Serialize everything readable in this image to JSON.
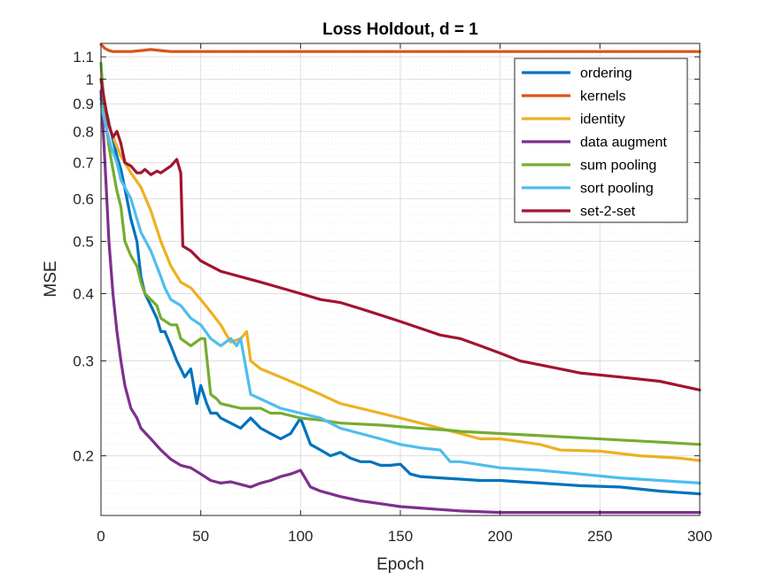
{
  "chart_data": {
    "type": "line",
    "title": "Loss Holdout, d = 1",
    "xlabel": "Epoch",
    "ylabel": "MSE",
    "xlim": [
      0,
      300
    ],
    "ylim": [
      0.155,
      1.165
    ],
    "yscale": "log",
    "grid": true,
    "legend_position": "top-right",
    "x_ticks": [
      0,
      50,
      100,
      150,
      200,
      250,
      300
    ],
    "x_tick_labels": [
      "0",
      "50",
      "100",
      "150",
      "200",
      "250",
      "300"
    ],
    "y_ticks": [
      0.2,
      0.3,
      0.4,
      0.5,
      0.6,
      0.7,
      0.8,
      0.9,
      1,
      1.1
    ],
    "y_tick_labels": [
      "0.2",
      "0.3",
      "0.4",
      "0.5",
      "0.6",
      "0.7",
      "0.8",
      "0.9",
      "1",
      "1.1"
    ],
    "series": [
      {
        "name": "ordering",
        "color": "#0072BD",
        "x": [
          0,
          3,
          5,
          8,
          10,
          13,
          15,
          18,
          20,
          22,
          25,
          28,
          30,
          32,
          35,
          38,
          40,
          42,
          45,
          48,
          50,
          53,
          55,
          58,
          60,
          65,
          70,
          75,
          80,
          85,
          90,
          95,
          100,
          105,
          110,
          115,
          120,
          125,
          130,
          135,
          140,
          145,
          150,
          155,
          160,
          170,
          180,
          190,
          200,
          210,
          220,
          240,
          260,
          280,
          300
        ],
        "y": [
          0.92,
          0.86,
          0.8,
          0.72,
          0.68,
          0.6,
          0.55,
          0.5,
          0.43,
          0.4,
          0.38,
          0.36,
          0.34,
          0.34,
          0.32,
          0.3,
          0.29,
          0.28,
          0.29,
          0.25,
          0.27,
          0.25,
          0.24,
          0.24,
          0.235,
          0.23,
          0.225,
          0.235,
          0.225,
          0.22,
          0.215,
          0.22,
          0.235,
          0.21,
          0.205,
          0.2,
          0.203,
          0.198,
          0.195,
          0.195,
          0.192,
          0.192,
          0.193,
          0.185,
          0.183,
          0.182,
          0.181,
          0.18,
          0.18,
          0.179,
          0.178,
          0.176,
          0.175,
          0.172,
          0.17
        ]
      },
      {
        "name": "kernels",
        "color": "#D95319",
        "x": [
          0,
          2,
          4,
          6,
          10,
          15,
          20,
          25,
          30,
          35,
          40,
          50,
          100,
          150,
          200,
          250,
          300
        ],
        "y": [
          1.16,
          1.14,
          1.13,
          1.125,
          1.125,
          1.125,
          1.13,
          1.135,
          1.13,
          1.125,
          1.125,
          1.125,
          1.125,
          1.125,
          1.125,
          1.125,
          1.125
        ]
      },
      {
        "name": "identity",
        "color": "#EDB120",
        "x": [
          0,
          3,
          5,
          8,
          10,
          15,
          20,
          25,
          30,
          35,
          40,
          45,
          50,
          55,
          60,
          65,
          70,
          73,
          75,
          80,
          90,
          100,
          110,
          120,
          130,
          140,
          150,
          160,
          170,
          180,
          190,
          200,
          220,
          230,
          250,
          270,
          290,
          300
        ],
        "y": [
          0.95,
          0.85,
          0.8,
          0.75,
          0.72,
          0.67,
          0.63,
          0.57,
          0.5,
          0.45,
          0.42,
          0.41,
          0.39,
          0.37,
          0.35,
          0.325,
          0.33,
          0.34,
          0.3,
          0.29,
          0.28,
          0.27,
          0.26,
          0.25,
          0.245,
          0.24,
          0.235,
          0.23,
          0.225,
          0.22,
          0.215,
          0.215,
          0.21,
          0.205,
          0.204,
          0.2,
          0.198,
          0.196
        ]
      },
      {
        "name": "data augment",
        "color": "#7E2F8E",
        "x": [
          0,
          2,
          4,
          6,
          8,
          10,
          12,
          15,
          18,
          20,
          25,
          30,
          35,
          40,
          45,
          50,
          55,
          60,
          65,
          70,
          75,
          80,
          85,
          90,
          95,
          100,
          105,
          110,
          115,
          120,
          130,
          140,
          150,
          160,
          170,
          180,
          200,
          220,
          240,
          260,
          280,
          300
        ],
        "y": [
          0.95,
          0.7,
          0.5,
          0.4,
          0.34,
          0.3,
          0.27,
          0.245,
          0.235,
          0.225,
          0.215,
          0.205,
          0.197,
          0.192,
          0.19,
          0.185,
          0.18,
          0.178,
          0.179,
          0.177,
          0.175,
          0.178,
          0.18,
          0.183,
          0.185,
          0.188,
          0.175,
          0.172,
          0.17,
          0.168,
          0.165,
          0.163,
          0.161,
          0.16,
          0.159,
          0.158,
          0.157,
          0.157,
          0.157,
          0.157,
          0.157,
          0.157
        ]
      },
      {
        "name": "sum pooling",
        "color": "#77AC30",
        "x": [
          0,
          2,
          4,
          6,
          8,
          10,
          12,
          15,
          18,
          20,
          22,
          25,
          28,
          30,
          35,
          38,
          40,
          45,
          50,
          52,
          55,
          58,
          60,
          70,
          80,
          85,
          90,
          100,
          110,
          120,
          140,
          160,
          175,
          180,
          200,
          220,
          240,
          260,
          280,
          300
        ],
        "y": [
          1.07,
          0.85,
          0.75,
          0.68,
          0.62,
          0.58,
          0.5,
          0.47,
          0.45,
          0.42,
          0.4,
          0.39,
          0.38,
          0.36,
          0.35,
          0.35,
          0.33,
          0.32,
          0.33,
          0.33,
          0.26,
          0.255,
          0.25,
          0.245,
          0.245,
          0.24,
          0.24,
          0.235,
          0.233,
          0.23,
          0.228,
          0.225,
          0.223,
          0.222,
          0.22,
          0.218,
          0.216,
          0.214,
          0.212,
          0.21
        ]
      },
      {
        "name": "sort pooling",
        "color": "#4DBEEE",
        "x": [
          0,
          3,
          5,
          8,
          10,
          15,
          18,
          20,
          25,
          30,
          32,
          35,
          40,
          45,
          50,
          55,
          60,
          65,
          68,
          70,
          75,
          80,
          90,
          100,
          110,
          120,
          130,
          140,
          150,
          160,
          170,
          175,
          180,
          200,
          220,
          240,
          260,
          280,
          300
        ],
        "y": [
          0.9,
          0.8,
          0.75,
          0.7,
          0.65,
          0.6,
          0.55,
          0.52,
          0.48,
          0.43,
          0.41,
          0.39,
          0.38,
          0.36,
          0.35,
          0.33,
          0.32,
          0.33,
          0.32,
          0.33,
          0.26,
          0.255,
          0.245,
          0.24,
          0.235,
          0.225,
          0.22,
          0.215,
          0.21,
          0.207,
          0.205,
          0.195,
          0.195,
          0.19,
          0.188,
          0.185,
          0.182,
          0.18,
          0.178
        ]
      },
      {
        "name": "set-2-set",
        "color": "#A2142F",
        "x": [
          0,
          2,
          4,
          6,
          8,
          10,
          12,
          15,
          18,
          20,
          22,
          25,
          28,
          30,
          35,
          38,
          40,
          41,
          45,
          50,
          60,
          70,
          80,
          90,
          100,
          110,
          120,
          130,
          140,
          150,
          160,
          170,
          180,
          190,
          200,
          210,
          220,
          240,
          260,
          280,
          300
        ],
        "y": [
          1.0,
          0.9,
          0.82,
          0.78,
          0.8,
          0.76,
          0.7,
          0.69,
          0.67,
          0.67,
          0.68,
          0.665,
          0.675,
          0.67,
          0.69,
          0.71,
          0.67,
          0.49,
          0.48,
          0.46,
          0.44,
          0.43,
          0.42,
          0.41,
          0.4,
          0.39,
          0.385,
          0.375,
          0.365,
          0.355,
          0.345,
          0.335,
          0.33,
          0.32,
          0.31,
          0.3,
          0.295,
          0.285,
          0.28,
          0.275,
          0.265
        ]
      }
    ]
  }
}
